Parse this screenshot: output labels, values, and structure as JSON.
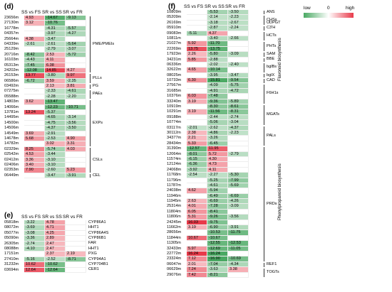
{
  "legend": {
    "low": "low",
    "zero": "0",
    "high": "high"
  },
  "colors": {
    "low": "#4aa963",
    "mid": "#ffffff",
    "high": "#e83a4a"
  },
  "vertical_labels": {
    "flavonoid": "Flavonoid biosynthesis",
    "phenylpropanoid": "Phenylpropanoid biosynthesis"
  },
  "panels": [
    {
      "key": "d",
      "label": "(d)",
      "columns": [
        "SS vs FS",
        "SR vs SS",
        "SR vs FR"
      ],
      "rows": [
        [
          "23656m",
          "4.93",
          "-14.67",
          "-9.13"
        ],
        [
          "27130m",
          "3.12",
          "-10.76",
          ""
        ],
        [
          "16778m",
          "",
          "-4.31",
          "-5.57"
        ],
        [
          "04357m",
          "",
          "-3.97",
          "-4.27"
        ],
        [
          "25664m",
          "4.38",
          "-3.47",
          ""
        ],
        [
          "04339m",
          "-2.61",
          "-2.61",
          "-5.64"
        ],
        [
          "25129m",
          "",
          "-2.79",
          "-3.07"
        ],
        [
          "20716m",
          "-8.42",
          "2.53",
          "-5.72"
        ],
        [
          "16103m",
          "-4.43",
          "4.11",
          ""
        ],
        [
          "05313m",
          "-7.45",
          "6.38",
          ""
        ],
        [
          "24202m",
          "-12.08",
          "14.85",
          "4.27"
        ],
        [
          "26153m",
          "13.77",
          "-3.80",
          "9.97"
        ],
        [
          "06586m",
          "-6.72",
          "3.59",
          "-2.35"
        ],
        [
          "03492m",
          "",
          "2.13",
          "3.81"
        ],
        [
          "07275m",
          "",
          "-2.33",
          "-4.61"
        ],
        [
          "05588m",
          "",
          "-2.28",
          "-2.20"
        ],
        [
          "14803m",
          "3.62",
          "-13.47",
          ""
        ],
        [
          "14066m",
          "",
          "-12.23",
          "-10.71"
        ],
        [
          "13781m",
          "13.24",
          "-5.37",
          ""
        ],
        [
          "14495m",
          "",
          "-4.65",
          "-3.14"
        ],
        [
          "14500m",
          "",
          "-4.75",
          "-3.56"
        ],
        [
          "14506m",
          "",
          "-4.37",
          "-3.50"
        ],
        [
          "14549m",
          "3.69",
          "-2.91",
          ""
        ],
        [
          "14678m",
          "5.68",
          "-2.53",
          "4.90"
        ],
        [
          "14782m",
          "",
          "3.02",
          "3.31"
        ],
        [
          "02329m",
          "8.25",
          "-5.74",
          "4.03"
        ],
        [
          "02542m",
          "4.53",
          "-3.44",
          ""
        ],
        [
          "02412m",
          "3.36",
          "-3.10",
          ""
        ],
        [
          "02406m",
          "3.40",
          "-3.10",
          ""
        ],
        [
          "02353m",
          "7.90",
          "-2.60",
          "5.23"
        ],
        [
          "06449m",
          "",
          "-3.47",
          "-3.91"
        ]
      ],
      "families": [
        {
          "name": "PME/PMEIs",
          "rows": [
            0,
            10
          ]
        },
        {
          "name": "PLLs",
          "rows": [
            11,
            12
          ]
        },
        {
          "name": "PG",
          "rows": [
            13,
            13
          ]
        },
        {
          "name": "PAEs",
          "rows": [
            14,
            15
          ]
        },
        {
          "name": "EXPs",
          "rows": [
            16,
            24
          ]
        },
        {
          "name": "CSLs",
          "rows": [
            25,
            29
          ]
        },
        {
          "name": "CEL",
          "rows": [
            30,
            30
          ]
        }
      ]
    },
    {
      "key": "e",
      "label": "(e)",
      "columns": [
        "SS vs FS",
        "SR vs SS",
        "SR vs FR"
      ],
      "rows": [
        [
          "05818m",
          "-3.22",
          "4.78",
          ""
        ],
        [
          "08072m",
          "-3.69",
          "4.71",
          ""
        ],
        [
          "05077m",
          "-3.08",
          "4.25",
          ""
        ],
        [
          "05090m",
          "-3.36",
          "2.89",
          ""
        ],
        [
          "26305m",
          "-2.74",
          "2.47",
          ""
        ],
        [
          "08088m",
          "-4.10",
          "2.47",
          ""
        ],
        [
          "17151m",
          "",
          "2.37",
          "2.19"
        ],
        [
          "27410m",
          "-5.16",
          "-2.52",
          "-8.71"
        ],
        [
          "31232m",
          "10.62",
          "-10.62",
          ""
        ],
        [
          "03694m",
          "12.64",
          "-12.64",
          ""
        ]
      ],
      "families": [
        {
          "name": "CYP86A1",
          "rows": [
            0,
            0
          ]
        },
        {
          "name": "HHT1",
          "rows": [
            1,
            1
          ]
        },
        {
          "name": "CYP86A4S",
          "rows": [
            2,
            2
          ]
        },
        {
          "name": "CYP86B1",
          "rows": [
            3,
            3
          ]
        },
        {
          "name": "FAR",
          "rows": [
            4,
            4
          ]
        },
        {
          "name": "HHT1",
          "rows": [
            5,
            5
          ]
        },
        {
          "name": "PXG",
          "rows": [
            6,
            6
          ]
        },
        {
          "name": "CYP94A1",
          "rows": [
            7,
            7
          ]
        },
        {
          "name": "CYP704B1",
          "rows": [
            8,
            8
          ]
        },
        {
          "name": "CER1",
          "rows": [
            9,
            9
          ]
        }
      ]
    },
    {
      "key": "f",
      "label": "(f)",
      "columns": [
        "SS vs FS",
        "SR vs SS",
        "SR vs FR"
      ],
      "rows": [
        [
          "10809m",
          "",
          "-5.53",
          "-3.50"
        ],
        [
          "05209m",
          "",
          "-2.14",
          "-2.23"
        ],
        [
          "26169m",
          "",
          "-3.18",
          "-2.67"
        ],
        [
          "05910m",
          "",
          "-2.87",
          "-2.24"
        ],
        [
          "09083m",
          "-5.11",
          "4.37",
          ""
        ],
        [
          "10811m",
          "",
          "-3.40",
          "-2.66"
        ],
        [
          "21027m",
          "5.92",
          "-11.70",
          ""
        ],
        [
          "22269m",
          "13.75",
          "-13.75",
          ""
        ],
        [
          "17923m",
          "2.26",
          "-5.80",
          "-3.09"
        ],
        [
          "34231m",
          "5.85",
          "-2.88",
          ""
        ],
        [
          "06336m",
          "",
          "-2.02",
          "-2.40"
        ],
        [
          "32622m",
          "4.65",
          "-10.14",
          ""
        ],
        [
          "08025m",
          "",
          "-3.95",
          "-3.47"
        ],
        [
          "10733m",
          "6.30",
          "-15.81",
          "-9.54"
        ],
        [
          "27567m",
          "",
          "-4.09",
          "-5.75"
        ],
        [
          "31685m",
          "",
          "-4.91",
          "-4.72"
        ],
        [
          "10376m",
          "6.03",
          "-7.48",
          ""
        ],
        [
          "33240m",
          "3.19",
          "-9.36",
          "-5.89"
        ],
        [
          "10919m",
          "",
          "-8.30",
          "-8.61"
        ],
        [
          "10291m",
          "3.19",
          "-11.56",
          "-8.31"
        ],
        [
          "09188m",
          "",
          "-2.44",
          "-2.74"
        ],
        [
          "10774m",
          "",
          "-5.06",
          "-3.04"
        ],
        [
          "03117m",
          "-2.01",
          "-2.62",
          "-4.37"
        ],
        [
          "30112m",
          "2.38",
          "-4.86",
          "-2.23"
        ],
        [
          "34377m",
          "2.21",
          "-3.26",
          ""
        ],
        [
          "28434m",
          "5.33",
          "-6.45",
          ""
        ],
        [
          "31390m",
          "-12.57",
          "11.95",
          ""
        ],
        [
          "12064m",
          "-8.01",
          "5.72",
          "-2.79"
        ],
        [
          "11574m",
          "-6.15",
          "4.30",
          ""
        ],
        [
          "12124m",
          "-6.36",
          "4.73",
          ""
        ],
        [
          "24068m",
          "-3.92",
          "4.11",
          ""
        ],
        [
          "11768m",
          "-2.54",
          "-2.27",
          "-5.30"
        ],
        [
          "11796m",
          "",
          "-5.25",
          "-7.99"
        ],
        [
          "11787m",
          "",
          "-4.61",
          "-5.69"
        ],
        [
          "24038m",
          "4.62",
          "-5.94",
          ""
        ],
        [
          "11946m",
          "",
          "-6.49",
          "-6.69"
        ],
        [
          "11945m",
          "2.63",
          "-6.69",
          "-4.26"
        ],
        [
          "25314m",
          "4.01",
          "-7.28",
          "-3.09"
        ],
        [
          "11804m",
          "6.05",
          "-8.41",
          ""
        ],
        [
          "11806m",
          "5.31",
          "-9.26",
          "-3.56"
        ],
        [
          "24245m",
          "16.03",
          "-9.75",
          ""
        ],
        [
          "11662m",
          "3.19",
          "-6.90",
          "-3.91"
        ],
        [
          "28656m",
          "",
          "-10.53",
          "-11.75"
        ],
        [
          "11844m",
          "10.67",
          "-10.67",
          ""
        ],
        [
          "11305m",
          "",
          "-12.55",
          "-12.53"
        ],
        [
          "32433m",
          "5.97",
          "-12.69",
          "-11.05"
        ],
        [
          "22772m",
          "16.24",
          "-16.24",
          ""
        ],
        [
          "23324m",
          "7.12",
          "-16.90",
          "-10.69"
        ],
        [
          "06047m",
          "2.01",
          "-7.04",
          "-4.34"
        ],
        [
          "06629m",
          "7.24",
          "-3.63",
          "3.38"
        ],
        [
          "29076m",
          "7.42",
          "-8.21",
          ""
        ]
      ],
      "families": [
        {
          "name": "ANS",
          "rows": [
            0,
            0
          ]
        },
        {
          "name": "CHSs",
          "rows": [
            1,
            2
          ]
        },
        {
          "name": "UDPGT",
          "rows": [
            2,
            2
          ]
        },
        {
          "name": "C3'H",
          "rows": [
            3,
            3
          ]
        },
        {
          "name": "HCTs",
          "rows": [
            4,
            5
          ]
        },
        {
          "name": "PHTs",
          "rows": [
            6,
            7
          ]
        },
        {
          "name": "SAM",
          "rows": [
            8,
            8
          ]
        },
        {
          "name": "BBE",
          "rows": [
            9,
            9
          ]
        },
        {
          "name": "bglBs",
          "rows": [
            10,
            11
          ]
        },
        {
          "name": "bglX",
          "rows": [
            12,
            12
          ]
        },
        {
          "name": "CAD",
          "rows": [
            13,
            13
          ]
        },
        {
          "name": "F6H1s",
          "rows": [
            14,
            17
          ]
        },
        {
          "name": "MGATs",
          "rows": [
            18,
            21
          ]
        },
        {
          "name": "PALs",
          "rows": [
            22,
            25
          ]
        },
        {
          "name": "PRDs",
          "rows": [
            26,
            47
          ]
        },
        {
          "name": "REF1",
          "rows": [
            48,
            48
          ]
        },
        {
          "name": "TOGTs",
          "rows": [
            49,
            50
          ]
        }
      ]
    }
  ]
}
